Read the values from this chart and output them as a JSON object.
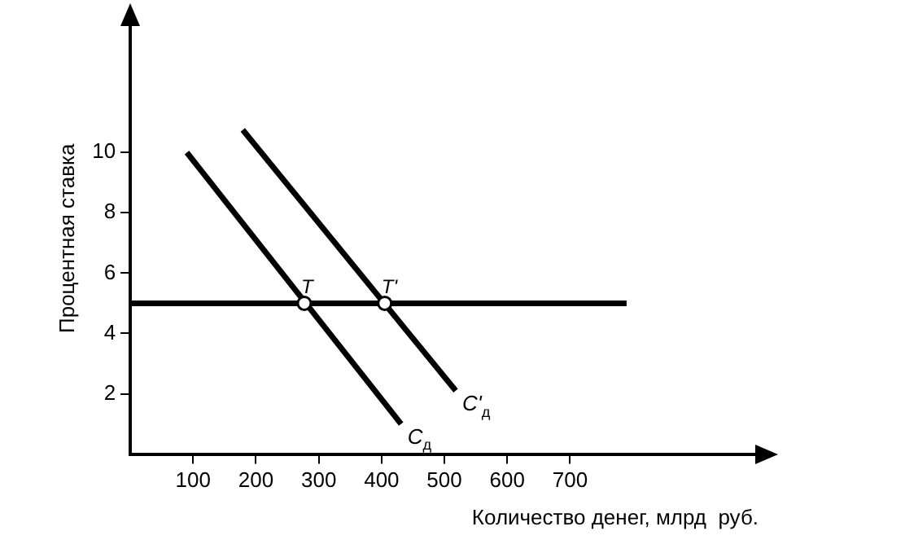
{
  "chart_data": {
    "type": "line",
    "xlabel": "Количество денег, млрд  руб.",
    "ylabel": "Процентная ставка",
    "xlim": [
      0,
      1000
    ],
    "xticks": [
      100,
      200,
      300,
      400,
      500,
      600,
      700
    ],
    "ylim": [
      0,
      14.3
    ],
    "yticks": [
      2,
      4,
      6,
      8,
      10
    ],
    "grid": false,
    "legend": false,
    "marker": "none",
    "line_style": "solid",
    "series": [
      {
        "name": "C$_{д}$",
        "color": "#000000",
        "x": [
          90,
          431
        ],
        "values": [
          10,
          1
        ]
      },
      {
        "name": "C'$_{д}$",
        "color": "#000000",
        "x": [
          179,
          518
        ],
        "values": [
          10.75,
          2.1
        ]
      },
      {
        "color": "#000000",
        "x": [
          0,
          790
        ],
        "values": [
          5,
          5
        ]
      },
      {
        "type": "scatter",
        "marker": "circle",
        "color": "#000000",
        "x": [
          277,
          405
        ],
        "values": [
          5,
          5
        ]
      }
    ],
    "annotations": [
      {
        "text": "T",
        "x": 277,
        "y": 5
      },
      {
        "text": "T'",
        "x": 405,
        "y": 5
      }
    ]
  }
}
